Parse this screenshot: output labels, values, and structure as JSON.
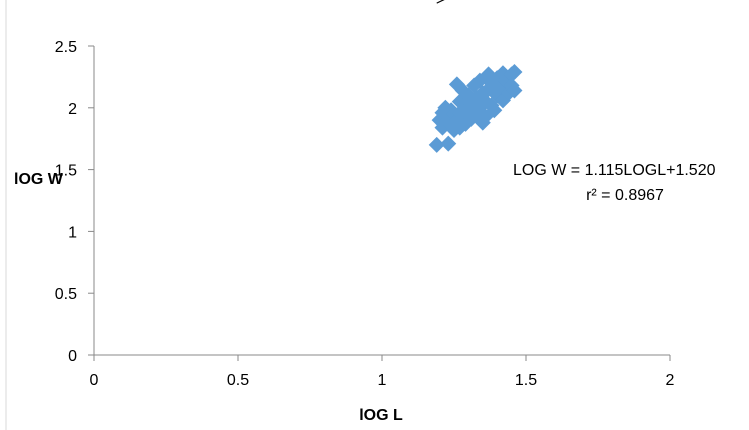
{
  "chart_data": {
    "type": "scatter",
    "xlabel": "lOG L",
    "ylabel": "lOG W",
    "xlim": [
      0,
      2
    ],
    "ylim": [
      0,
      2.5
    ],
    "x_ticks": [
      0,
      0.5,
      1,
      1.5,
      2
    ],
    "y_ticks": [
      0,
      0.5,
      1,
      1.5,
      2,
      2.5
    ],
    "x_tick_labels": [
      "0",
      "0.5",
      "1",
      "1.5",
      "2"
    ],
    "y_tick_labels": [
      "0",
      "0.5",
      "1",
      "1.5",
      "2",
      "2.5"
    ],
    "grid": false,
    "marker_color": "#5B9BD5",
    "trendline_color": "#000000",
    "trendline": {
      "slope": 1.115,
      "intercept": 1.52,
      "x_range": [
        1.19,
        1.46
      ],
      "equation": "LOG W = 1.115LOGL+1.520",
      "r_squared": "r² = 0.8967"
    },
    "series": [
      {
        "points": [
          [
            1.19,
            1.7
          ],
          [
            1.2,
            1.9
          ],
          [
            1.21,
            1.96
          ],
          [
            1.21,
            1.84
          ],
          [
            1.22,
            2.0
          ],
          [
            1.22,
            1.88
          ],
          [
            1.23,
            1.71
          ],
          [
            1.23,
            1.93
          ],
          [
            1.24,
            1.98
          ],
          [
            1.24,
            1.86
          ],
          [
            1.25,
            1.95
          ],
          [
            1.25,
            1.82
          ],
          [
            1.26,
            2.19
          ],
          [
            1.26,
            1.9
          ],
          [
            1.27,
            2.05
          ],
          [
            1.27,
            1.96
          ],
          [
            1.27,
            1.84
          ],
          [
            1.28,
            2.14
          ],
          [
            1.28,
            1.92
          ],
          [
            1.29,
            2.0
          ],
          [
            1.29,
            1.87
          ],
          [
            1.3,
            2.1
          ],
          [
            1.3,
            1.95
          ],
          [
            1.31,
            2.03
          ],
          [
            1.31,
            1.91
          ],
          [
            1.32,
            2.18
          ],
          [
            1.32,
            1.98
          ],
          [
            1.33,
            2.08
          ],
          [
            1.33,
            1.94
          ],
          [
            1.34,
            2.22
          ],
          [
            1.34,
            2.0
          ],
          [
            1.35,
            1.88
          ],
          [
            1.35,
            2.12
          ],
          [
            1.36,
            2.05
          ],
          [
            1.36,
            1.93
          ],
          [
            1.37,
            2.27
          ],
          [
            1.37,
            2.15
          ],
          [
            1.38,
            2.02
          ],
          [
            1.38,
            2.2
          ],
          [
            1.39,
            1.98
          ],
          [
            1.4,
            2.24
          ],
          [
            1.4,
            2.1
          ],
          [
            1.41,
            2.17
          ],
          [
            1.42,
            2.28
          ],
          [
            1.42,
            2.06
          ],
          [
            1.43,
            2.22
          ],
          [
            1.44,
            2.12
          ],
          [
            1.45,
            2.27
          ],
          [
            1.45,
            2.18
          ],
          [
            1.46,
            2.29
          ],
          [
            1.46,
            2.14
          ]
        ]
      }
    ]
  }
}
